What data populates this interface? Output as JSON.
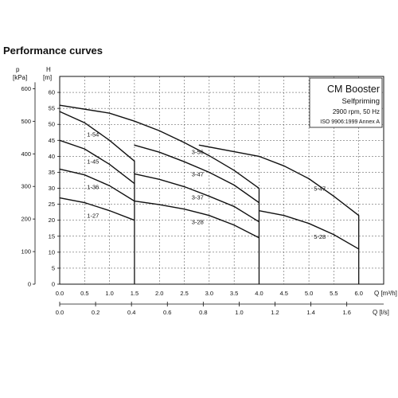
{
  "heading": "Performance curves",
  "chart_data": {
    "type": "line",
    "title": "",
    "legend_box": {
      "lines": [
        "CM Booster",
        "Selfpriming",
        "2900 rpm, 50 Hz",
        "ISO 9906:1999 Annex A"
      ],
      "placement": "top-right"
    },
    "y_left": {
      "unit": "p",
      "unit_bracket": "[kPa]",
      "ticks": [
        0,
        100,
        200,
        300,
        400,
        500,
        600
      ],
      "range": [
        0,
        600
      ]
    },
    "y_right": {
      "unit": "H",
      "unit_bracket": "[m]",
      "ticks": [
        0,
        5,
        10,
        15,
        20,
        25,
        30,
        35,
        40,
        45,
        50,
        55,
        60
      ],
      "range": [
        0,
        65
      ]
    },
    "x_main": {
      "label": "Q [m³/h]",
      "ticks": [
        "0.0",
        "0.5",
        "1.0",
        "1.5",
        "2.0",
        "2.5",
        "3.0",
        "3.5",
        "4.0",
        "4.5",
        "5.0",
        "5.5",
        "6.0"
      ],
      "tick_values": [
        0,
        0.5,
        1,
        1.5,
        2,
        2.5,
        3,
        3.5,
        4,
        4.5,
        5,
        5.5,
        6
      ],
      "range": [
        0,
        6.5
      ]
    },
    "x_secondary": {
      "label": "Q [l/s]",
      "ticks": [
        "0.0",
        "0.2",
        "0.4",
        "0.6",
        "0.8",
        "1.0",
        "1.2",
        "1.4",
        "1.6"
      ],
      "tick_values": [
        0,
        0.2,
        0.4,
        0.6,
        0.8,
        1.0,
        1.2,
        1.4,
        1.6
      ]
    },
    "grid": true,
    "series": [
      {
        "name": "1-54",
        "x": [
          0,
          0.5,
          1.0,
          1.5
        ],
        "y": [
          54,
          50.5,
          45,
          38.5
        ],
        "label_at": [
          0.5,
          47
        ]
      },
      {
        "name": "1-45",
        "x": [
          0,
          0.5,
          1.0,
          1.5
        ],
        "y": [
          45,
          42.3,
          37.5,
          31.5
        ],
        "label_at": [
          0.5,
          38.5
        ]
      },
      {
        "name": "1-36",
        "x": [
          0,
          0.5,
          1.0,
          1.5
        ],
        "y": [
          36,
          34.2,
          30.8,
          26
        ],
        "label_at": [
          0.5,
          30.5
        ]
      },
      {
        "name": "1-27",
        "x": [
          0,
          0.5,
          1.0,
          1.5
        ],
        "y": [
          27,
          25.5,
          23,
          20
        ],
        "label_at": [
          0.5,
          21.5
        ]
      },
      {
        "name": "3-56",
        "x": [
          0,
          1.0,
          1.5,
          2.0,
          2.5,
          3.0,
          3.5,
          4.0
        ],
        "y": [
          56,
          53.5,
          51,
          48,
          44.3,
          40.2,
          35.6,
          30
        ],
        "label_at": [
          2.6,
          41.5
        ]
      },
      {
        "name": "3-47",
        "x": [
          1.5,
          2.0,
          2.5,
          3.0,
          3.5,
          4.0
        ],
        "y": [
          43.5,
          41.3,
          38.3,
          35,
          31,
          25.5
        ],
        "label_at": [
          2.6,
          34.5
        ]
      },
      {
        "name": "3-37",
        "x": [
          1.5,
          2.0,
          2.5,
          3.0,
          3.5,
          4.0
        ],
        "y": [
          34.5,
          32.8,
          30.5,
          27.5,
          24.3,
          19.5
        ],
        "label_at": [
          2.6,
          27.3
        ]
      },
      {
        "name": "3-28",
        "x": [
          1.5,
          2.0,
          2.5,
          3.0,
          3.5,
          4.0
        ],
        "y": [
          26,
          24.9,
          23.5,
          21.5,
          18.5,
          14.5
        ],
        "label_at": [
          2.6,
          19.5
        ]
      },
      {
        "name": "5-47",
        "x": [
          2.8,
          4.0,
          4.5,
          5.0,
          5.5,
          6.0
        ],
        "y": [
          43.5,
          40,
          37,
          33,
          27.5,
          21.5
        ],
        "label_at": [
          5.05,
          30
        ]
      },
      {
        "name": "5-28",
        "x": [
          4.0,
          4.5,
          5.0,
          5.5,
          6.0
        ],
        "y": [
          23,
          21.5,
          19,
          15.5,
          11
        ],
        "label_at": [
          5.05,
          15
        ]
      }
    ],
    "boundaries_m3h": [
      1.5,
      4.0,
      6.0
    ]
  }
}
